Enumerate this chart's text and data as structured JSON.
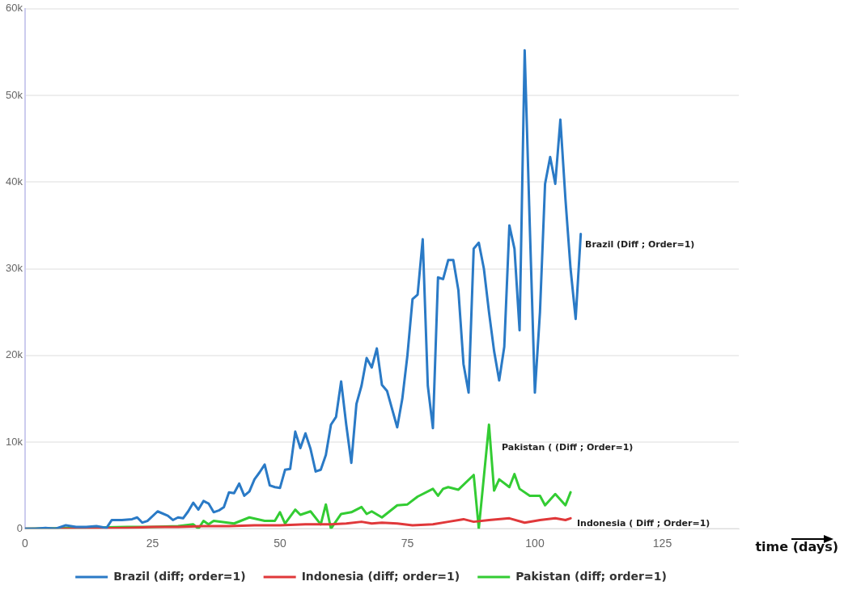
{
  "chart_data": {
    "type": "line",
    "xlabel": "time (days)",
    "legend": "bottom",
    "grid": "y",
    "marker": "none",
    "line_style": "solid",
    "xlim": [
      0,
      140
    ],
    "xticks": [
      0,
      25,
      50,
      75,
      100,
      125
    ],
    "ylim": [
      0,
      60000
    ],
    "yticks": [
      {
        "value": 0,
        "label": "0"
      },
      {
        "value": 10000,
        "label": "10k"
      },
      {
        "value": 20000,
        "label": "20k"
      },
      {
        "value": 30000,
        "label": "30k"
      },
      {
        "value": 40000,
        "label": "40k"
      },
      {
        "value": 50000,
        "label": "50k"
      },
      {
        "value": 60000,
        "label": "60k"
      }
    ],
    "series": [
      {
        "name": "Brazil (diff; order=1)",
        "color": "#2a7ac6",
        "x": [
          0,
          2,
          4,
          6,
          8,
          10,
          12,
          14,
          16,
          17,
          19,
          21,
          22,
          23,
          24,
          26,
          28,
          29,
          30,
          31,
          32,
          33,
          34,
          35,
          36,
          37,
          38,
          39,
          40,
          41,
          42,
          43,
          44,
          45,
          46,
          47,
          48,
          49,
          50,
          51,
          52,
          53,
          54,
          55,
          56,
          57,
          58,
          59,
          60,
          61,
          62,
          63,
          64,
          65,
          66,
          67,
          68,
          69,
          70,
          71,
          73,
          74,
          75,
          76,
          77,
          78,
          79,
          80,
          81,
          82,
          83,
          84,
          85,
          86,
          87,
          88,
          89,
          90,
          91,
          92,
          93,
          94,
          95,
          96,
          97,
          98,
          99,
          100,
          101,
          102,
          103,
          104,
          105,
          106,
          107,
          108,
          109
        ],
        "values": [
          0,
          0,
          100,
          0,
          400,
          200,
          200,
          300,
          100,
          1000,
          1000,
          1100,
          1300,
          700,
          900,
          2000,
          1500,
          1000,
          1300,
          1200,
          2000,
          3000,
          2200,
          3200,
          2900,
          1900,
          2100,
          2500,
          4200,
          4100,
          5200,
          3800,
          4300,
          5700,
          6500,
          7400,
          5000,
          4800,
          4700,
          6800,
          6900,
          11200,
          9300,
          11000,
          9200,
          6600,
          6800,
          8500,
          12000,
          12900,
          17000,
          12000,
          7600,
          14400,
          16500,
          19700,
          18600,
          20800,
          16600,
          15900,
          11700,
          15000,
          20000,
          26500,
          27000,
          33400,
          16500,
          11600,
          29000,
          28800,
          31000,
          31000,
          27500,
          19000,
          15700,
          32300,
          33000,
          30000,
          25000,
          20500,
          17100,
          21000,
          35000,
          32300,
          22900,
          55200,
          35000,
          15700,
          25000,
          39800,
          42900,
          39800,
          47200,
          38000,
          30000,
          24200,
          34000
        ]
      },
      {
        "name": "Indonesia (diff; order=1)",
        "color": "#e0383a",
        "x": [
          0,
          10,
          20,
          25,
          30,
          35,
          40,
          45,
          50,
          55,
          60,
          63,
          66,
          68,
          70,
          73,
          76,
          80,
          83,
          86,
          88,
          91,
          95,
          98,
          101,
          104,
          106,
          107
        ],
        "values": [
          0,
          0,
          100,
          200,
          200,
          300,
          300,
          400,
          400,
          500,
          500,
          600,
          800,
          600,
          700,
          600,
          400,
          500,
          800,
          1100,
          800,
          1000,
          1200,
          700,
          1000,
          1200,
          1000,
          1200
        ]
      },
      {
        "name": "Pakistan (diff; order=1)",
        "color": "#33cc33",
        "x": [
          0,
          10,
          20,
          25,
          30,
          33,
          34,
          35,
          36,
          37,
          41,
          44,
          47,
          49,
          50,
          51,
          53,
          54,
          56,
          58,
          59,
          60,
          62,
          64,
          66,
          67,
          68,
          70,
          73,
          75,
          77,
          80,
          81,
          82,
          83,
          85,
          88,
          89,
          91,
          92,
          93,
          95,
          96,
          97,
          99,
          101,
          102,
          104,
          106,
          107
        ],
        "values": [
          0,
          100,
          200,
          200,
          300,
          500,
          0,
          900,
          500,
          900,
          600,
          1300,
          900,
          900,
          1900,
          600,
          2200,
          1600,
          2000,
          500,
          2800,
          0,
          1700,
          1900,
          2500,
          1700,
          2000,
          1300,
          2700,
          2800,
          3700,
          4600,
          3800,
          4600,
          4800,
          4500,
          6200,
          0,
          12000,
          4400,
          5700,
          4800,
          6300,
          4600,
          3800,
          3800,
          2700,
          4000,
          2700,
          4200
        ]
      }
    ],
    "annotations": [
      "Brazil (Diff ; Order=1)",
      "Pakistan ( (Diff ; Order=1)",
      "Indonesia ( Diff ; Order=1)"
    ]
  }
}
